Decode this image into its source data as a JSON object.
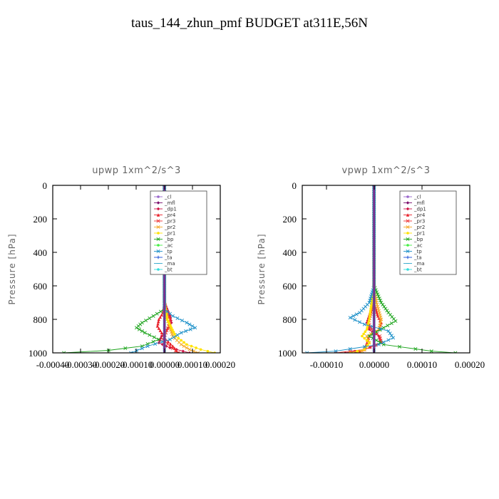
{
  "title": "taus_144_zhun_pmf  BUDGET at311E,56N",
  "legend_entries": [
    {
      "label": "_cl",
      "color": "#9966cc",
      "marker": "circle"
    },
    {
      "label": "_mfl",
      "color": "#7a0f6e",
      "marker": "diamond"
    },
    {
      "label": "_dp1",
      "color": "#cc1144",
      "marker": "diamond"
    },
    {
      "label": "_pr4",
      "color": "#e8202a",
      "marker": "triangle"
    },
    {
      "label": "_pr3",
      "color": "#ee3333",
      "marker": "x"
    },
    {
      "label": "_pr2",
      "color": "#f5a623",
      "marker": "x"
    },
    {
      "label": "_pr1",
      "color": "#ffe200",
      "marker": "circle"
    },
    {
      "label": "_bp",
      "color": "#1aa31a",
      "marker": "x"
    },
    {
      "label": "_ac",
      "color": "#44ee44",
      "marker": "circle"
    },
    {
      "label": "_tp",
      "color": "#1a8fc8",
      "marker": "x"
    },
    {
      "label": "_ta",
      "color": "#1a4fd8",
      "marker": "plus"
    },
    {
      "label": "_ma",
      "color": "#33aacc",
      "marker": "dash"
    },
    {
      "label": "_bt",
      "color": "#33dddd",
      "marker": "circle"
    }
  ],
  "chart_data": [
    {
      "type": "line",
      "title": "upwp   1xm^2/s^3",
      "ylabel": "Pressure  [hPa]",
      "xlim": [
        -0.0004,
        0.0002
      ],
      "ylim": [
        1000,
        0
      ],
      "xtick_labels": [
        "-0.00040",
        "-0.00030",
        "-0.00020",
        "-0.00010",
        "0.00000",
        "0.00010",
        "0.00020"
      ],
      "ytick_labels": [
        "0",
        "200",
        "400",
        "600",
        "800",
        "1000"
      ],
      "legend_location": "upper-right",
      "series": [
        {
          "name": "_cl",
          "p": [
            0,
            500,
            1000
          ],
          "x": [
            0,
            0,
            0
          ]
        },
        {
          "name": "_mfl",
          "p": [
            0,
            500,
            1000
          ],
          "x": [
            0,
            0,
            0
          ]
        },
        {
          "name": "_dp1",
          "p": [
            0,
            700,
            780,
            820,
            860,
            900,
            940,
            970,
            1000
          ],
          "x": [
            0,
            0,
            2e-05,
            2.5e-05,
            1e-05,
            -1e-05,
            -2e-05,
            2e-05,
            9e-05
          ]
        },
        {
          "name": "_pr4",
          "p": [
            0,
            700,
            760,
            800,
            840,
            880,
            920,
            960,
            1000
          ],
          "x": [
            0,
            0,
            -5e-06,
            -2e-05,
            -2.5e-05,
            -1e-05,
            5e-06,
            3e-05,
            5e-05
          ]
        },
        {
          "name": "_pr3",
          "p": [
            0,
            700,
            760,
            800,
            840,
            880,
            920,
            960,
            1000
          ],
          "x": [
            0,
            0,
            8e-06,
            2e-05,
            1.5e-05,
            5e-06,
            -5e-06,
            2e-05,
            5e-05
          ]
        },
        {
          "name": "_pr2",
          "p": [
            0,
            700,
            800,
            900,
            950,
            980,
            1000
          ],
          "x": [
            0,
            0,
            1e-05,
            3e-05,
            6e-05,
            9e-05,
            0.00012
          ]
        },
        {
          "name": "_pr1",
          "p": [
            0,
            700,
            800,
            900,
            950,
            980,
            1000
          ],
          "x": [
            0,
            0,
            1e-05,
            4e-05,
            8e-05,
            0.00013,
            0.00018
          ]
        },
        {
          "name": "_bp",
          "p": [
            0,
            740,
            780,
            820,
            850,
            880,
            920,
            960,
            985,
            1000
          ],
          "x": [
            0,
            0,
            -4e-05,
            -8e-05,
            -0.0001,
            -7e-05,
            -2e-05,
            -8e-05,
            -0.0002,
            -0.00036
          ]
        },
        {
          "name": "_ac",
          "p": [
            0,
            500,
            1000
          ],
          "x": [
            0,
            0,
            0
          ]
        },
        {
          "name": "_tp",
          "p": [
            0,
            740,
            780,
            820,
            850,
            880,
            920,
            960,
            1000
          ],
          "x": [
            0,
            0,
            3e-05,
            8e-05,
            0.00011,
            6e-05,
            2e-05,
            -6e-05,
            -0.00012
          ]
        },
        {
          "name": "_ta",
          "p": [
            0,
            500,
            1000
          ],
          "x": [
            0,
            0,
            0
          ]
        },
        {
          "name": "_ma",
          "p": [
            0,
            500,
            1000
          ],
          "x": [
            0,
            0,
            0
          ]
        },
        {
          "name": "_bt",
          "p": [
            0,
            500,
            1000
          ],
          "x": [
            0,
            0,
            0
          ]
        }
      ]
    },
    {
      "type": "line",
      "title": "vpwp   1xm^2/s^3",
      "ylabel": "Pressure  [hPa]",
      "xlim": [
        -0.00015,
        0.0002
      ],
      "ylim": [
        1000,
        0
      ],
      "xtick_labels": [
        "-0.00010",
        "0.00000",
        "0.00010",
        "0.00020"
      ],
      "ytick_labels": [
        "0",
        "200",
        "400",
        "600",
        "800",
        "1000"
      ],
      "legend_location": "upper-right",
      "series": [
        {
          "name": "_cl",
          "p": [
            0,
            500,
            1000
          ],
          "x": [
            0,
            0,
            0
          ]
        },
        {
          "name": "_mfl",
          "p": [
            0,
            500,
            1000
          ],
          "x": [
            0,
            0,
            0
          ]
        },
        {
          "name": "_dp1",
          "p": [
            0,
            700,
            780,
            820,
            860,
            900,
            940,
            980,
            1000
          ],
          "x": [
            0,
            0,
            -1e-05,
            -1.5e-05,
            -1e-05,
            1e-05,
            1.5e-05,
            -2e-05,
            -6e-05
          ]
        },
        {
          "name": "_pr4",
          "p": [
            0,
            700,
            780,
            820,
            860,
            900,
            940,
            980,
            1000
          ],
          "x": [
            0,
            0,
            8e-06,
            1.5e-05,
            1e-05,
            -1e-05,
            -1.5e-05,
            -2e-05,
            -4e-05
          ]
        },
        {
          "name": "_pr3",
          "p": [
            0,
            700,
            780,
            820,
            860,
            900,
            940,
            980,
            1000
          ],
          "x": [
            0,
            0,
            -8e-06,
            -1.2e-05,
            -5e-06,
            1.2e-05,
            1.5e-05,
            -2e-05,
            -8e-05
          ]
        },
        {
          "name": "_pr2",
          "p": [
            0,
            600,
            700,
            800,
            860,
            900,
            940,
            980,
            1000
          ],
          "x": [
            0,
            0,
            5e-06,
            1.5e-05,
            1e-05,
            -1.5e-05,
            -1e-05,
            -2e-05,
            -3e-05
          ]
        },
        {
          "name": "_pr1",
          "p": [
            0,
            600,
            700,
            800,
            860,
            900,
            940,
            980,
            1000
          ],
          "x": [
            0,
            0,
            -5e-06,
            -1e-05,
            -1.5e-05,
            -2.5e-05,
            -1e-05,
            -2e-05,
            -5e-05
          ]
        },
        {
          "name": "_bp",
          "p": [
            0,
            600,
            700,
            760,
            810,
            850,
            900,
            950,
            990,
            1000
          ],
          "x": [
            0,
            0,
            1.5e-05,
            3e-05,
            4.5e-05,
            2e-05,
            -1e-05,
            2e-05,
            0.00012,
            0.00017
          ]
        },
        {
          "name": "_ac",
          "p": [
            0,
            500,
            1000
          ],
          "x": [
            0,
            0,
            0
          ]
        },
        {
          "name": "_tp",
          "p": [
            0,
            600,
            700,
            760,
            790,
            830,
            870,
            910,
            950,
            990,
            1000
          ],
          "x": [
            0,
            0,
            -1e-05,
            -3e-05,
            -5e-05,
            -2e-05,
            3e-05,
            4e-05,
            1e-05,
            -8e-05,
            -0.00014
          ]
        },
        {
          "name": "_ta",
          "p": [
            0,
            500,
            1000
          ],
          "x": [
            0,
            0,
            0
          ]
        },
        {
          "name": "_ma",
          "p": [
            0,
            500,
            1000
          ],
          "x": [
            0,
            0,
            0
          ]
        },
        {
          "name": "_bt",
          "p": [
            0,
            500,
            1000
          ],
          "x": [
            0,
            0,
            0
          ]
        }
      ]
    }
  ]
}
